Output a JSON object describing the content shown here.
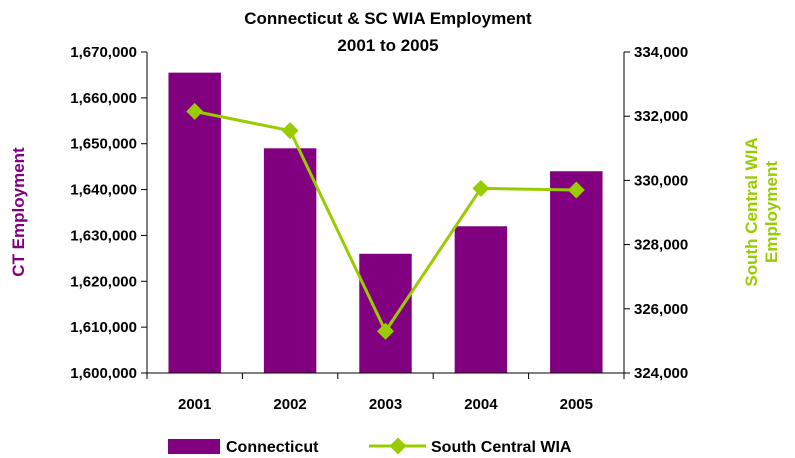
{
  "chart_data": {
    "type": "bar+line",
    "title_lines": [
      "Connecticut & SC WIA Employment",
      "2001 to 2005"
    ],
    "categories": [
      "2001",
      "2002",
      "2003",
      "2004",
      "2005"
    ],
    "ylabel_left": "CT Employment",
    "ylabel_right_lines": [
      "South Central WIA",
      "Employment"
    ],
    "left_axis": {
      "ylim": [
        1600000,
        1670000
      ],
      "ticks": [
        1600000,
        1610000,
        1620000,
        1630000,
        1640000,
        1650000,
        1660000,
        1670000
      ],
      "tick_labels": [
        "1,600,000",
        "1,610,000",
        "1,620,000",
        "1,630,000",
        "1,640,000",
        "1,650,000",
        "1,660,000",
        "1,670,000"
      ]
    },
    "right_axis": {
      "ylim": [
        324000,
        334000
      ],
      "ticks": [
        324000,
        326000,
        328000,
        330000,
        332000,
        334000
      ],
      "tick_labels": [
        "324,000",
        "326,000",
        "328,000",
        "330,000",
        "332,000",
        "334,000"
      ]
    },
    "series": [
      {
        "name": "Connecticut",
        "type": "bar",
        "axis": "left",
        "color": "#800080",
        "values": [
          1665500,
          1649000,
          1626000,
          1632000,
          1644000
        ]
      },
      {
        "name": "South Central WIA",
        "type": "line",
        "axis": "right",
        "color": "#99CC00",
        "values": [
          332150,
          331550,
          325300,
          329750,
          329700
        ]
      }
    ],
    "grid": false,
    "legend_position": "bottom"
  }
}
